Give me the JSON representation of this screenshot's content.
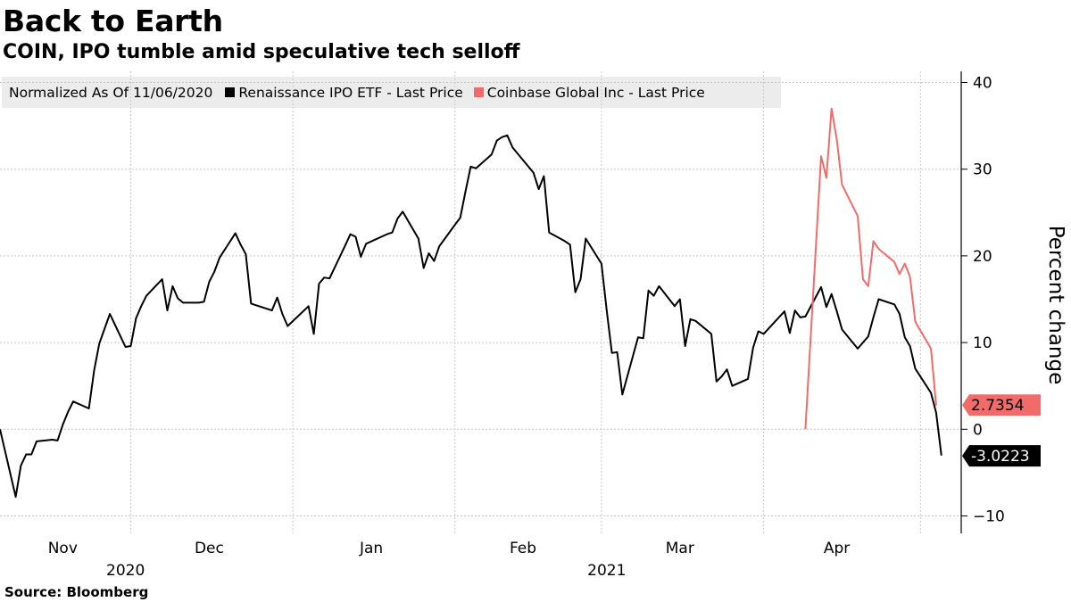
{
  "title": "Back to Earth",
  "subtitle": "COIN, IPO tumble amid speculative tech selloff",
  "legend": {
    "note": "Normalized As Of 11/06/2020",
    "items": [
      {
        "label": "Renaissance IPO ETF - Last Price",
        "color": "#000000"
      },
      {
        "label": "Coinbase Global Inc - Last Price",
        "color": "#f26b6b"
      }
    ]
  },
  "source": "Source:  Bloomberg",
  "chart_data": {
    "type": "line",
    "ylabel": "Percent change",
    "ylim": [
      -12,
      41
    ],
    "yticks": [
      40,
      30,
      20,
      10,
      0,
      -10
    ],
    "grid": true,
    "x_months": [
      "Nov",
      "Dec",
      "Jan",
      "Feb",
      "Mar",
      "Apr"
    ],
    "x_years": [
      "2020",
      "2021"
    ],
    "series": [
      {
        "name": "Renaissance IPO ETF - Last Price",
        "color": "#000000",
        "last_value_label": "-3.0223",
        "points": [
          [
            "2020-11-06",
            0.0
          ],
          [
            "2020-11-09",
            -7.8
          ],
          [
            "2020-11-10",
            -4.2
          ],
          [
            "2020-11-11",
            -2.9
          ],
          [
            "2020-11-12",
            -2.9
          ],
          [
            "2020-11-13",
            -1.4
          ],
          [
            "2020-11-16",
            -1.2
          ],
          [
            "2020-11-17",
            -1.3
          ],
          [
            "2020-11-18",
            0.5
          ],
          [
            "2020-11-19",
            2.0
          ],
          [
            "2020-11-20",
            3.2
          ],
          [
            "2020-11-23",
            2.4
          ],
          [
            "2020-11-24",
            6.8
          ],
          [
            "2020-11-25",
            9.9
          ],
          [
            "2020-11-27",
            13.3
          ],
          [
            "2020-11-30",
            9.5
          ],
          [
            "2020-12-01",
            9.6
          ],
          [
            "2020-12-02",
            12.8
          ],
          [
            "2020-12-03",
            14.2
          ],
          [
            "2020-12-04",
            15.4
          ],
          [
            "2020-12-07",
            17.3
          ],
          [
            "2020-12-08",
            13.7
          ],
          [
            "2020-12-09",
            16.5
          ],
          [
            "2020-12-10",
            15.1
          ],
          [
            "2020-12-11",
            14.6
          ],
          [
            "2020-12-14",
            14.6
          ],
          [
            "2020-12-15",
            14.7
          ],
          [
            "2020-12-16",
            17.0
          ],
          [
            "2020-12-17",
            18.2
          ],
          [
            "2020-12-18",
            19.8
          ],
          [
            "2020-12-21",
            22.6
          ],
          [
            "2020-12-22",
            21.3
          ],
          [
            "2020-12-23",
            20.2
          ],
          [
            "2020-12-24",
            14.5
          ],
          [
            "2020-12-28",
            13.7
          ],
          [
            "2020-12-29",
            15.2
          ],
          [
            "2020-12-30",
            13.3
          ],
          [
            "2020-12-31",
            11.9
          ],
          [
            "2021-01-04",
            14.2
          ],
          [
            "2021-01-05",
            11.0
          ],
          [
            "2021-01-06",
            16.8
          ],
          [
            "2021-01-07",
            17.5
          ],
          [
            "2021-01-08",
            17.4
          ],
          [
            "2021-01-11",
            21.2
          ],
          [
            "2021-01-12",
            22.5
          ],
          [
            "2021-01-13",
            22.2
          ],
          [
            "2021-01-14",
            19.9
          ],
          [
            "2021-01-15",
            21.4
          ],
          [
            "2021-01-19",
            22.5
          ],
          [
            "2021-01-20",
            22.7
          ],
          [
            "2021-01-21",
            24.3
          ],
          [
            "2021-01-22",
            25.1
          ],
          [
            "2021-01-25",
            22.0
          ],
          [
            "2021-01-26",
            18.6
          ],
          [
            "2021-01-27",
            20.3
          ],
          [
            "2021-01-28",
            19.4
          ],
          [
            "2021-01-29",
            21.1
          ],
          [
            "2021-02-01",
            23.6
          ],
          [
            "2021-02-02",
            24.4
          ],
          [
            "2021-02-03",
            27.4
          ],
          [
            "2021-02-04",
            30.3
          ],
          [
            "2021-02-05",
            30.1
          ],
          [
            "2021-02-08",
            31.7
          ],
          [
            "2021-02-09",
            33.3
          ],
          [
            "2021-02-10",
            33.7
          ],
          [
            "2021-02-11",
            33.9
          ],
          [
            "2021-02-12",
            32.5
          ],
          [
            "2021-02-16",
            29.6
          ],
          [
            "2021-02-17",
            27.7
          ],
          [
            "2021-02-18",
            29.2
          ],
          [
            "2021-02-19",
            22.7
          ],
          [
            "2021-02-22",
            21.7
          ],
          [
            "2021-02-23",
            21.3
          ],
          [
            "2021-02-24",
            15.8
          ],
          [
            "2021-02-25",
            17.3
          ],
          [
            "2021-02-26",
            22.0
          ],
          [
            "2021-03-01",
            19.1
          ],
          [
            "2021-03-02",
            13.7
          ],
          [
            "2021-03-03",
            8.8
          ],
          [
            "2021-03-04",
            8.9
          ],
          [
            "2021-03-05",
            4.0
          ],
          [
            "2021-03-08",
            10.6
          ],
          [
            "2021-03-09",
            10.5
          ],
          [
            "2021-03-10",
            16.0
          ],
          [
            "2021-03-11",
            15.4
          ],
          [
            "2021-03-12",
            16.5
          ],
          [
            "2021-03-15",
            14.2
          ],
          [
            "2021-03-16",
            15.0
          ],
          [
            "2021-03-17",
            9.6
          ],
          [
            "2021-03-18",
            12.7
          ],
          [
            "2021-03-19",
            12.5
          ],
          [
            "2021-03-22",
            11.0
          ],
          [
            "2021-03-23",
            5.5
          ],
          [
            "2021-03-24",
            6.1
          ],
          [
            "2021-03-25",
            6.9
          ],
          [
            "2021-03-26",
            5.0
          ],
          [
            "2021-03-29",
            5.8
          ],
          [
            "2021-03-30",
            9.4
          ],
          [
            "2021-03-31",
            11.3
          ],
          [
            "2021-04-01",
            11.0
          ],
          [
            "2021-04-05",
            13.6
          ],
          [
            "2021-04-06",
            11.1
          ],
          [
            "2021-04-07",
            13.7
          ],
          [
            "2021-04-08",
            12.9
          ],
          [
            "2021-04-09",
            13.0
          ],
          [
            "2021-04-12",
            16.4
          ],
          [
            "2021-04-13",
            14.1
          ],
          [
            "2021-04-14",
            15.6
          ],
          [
            "2021-04-15",
            13.6
          ],
          [
            "2021-04-16",
            11.5
          ],
          [
            "2021-04-19",
            9.3
          ],
          [
            "2021-04-20",
            10.0
          ],
          [
            "2021-04-21",
            10.7
          ],
          [
            "2021-04-22",
            12.9
          ],
          [
            "2021-04-23",
            15.0
          ],
          [
            "2021-04-26",
            14.4
          ],
          [
            "2021-04-27",
            13.3
          ],
          [
            "2021-04-28",
            10.6
          ],
          [
            "2021-04-29",
            9.6
          ],
          [
            "2021-04-30",
            7.0
          ],
          [
            "2021-05-03",
            4.2
          ],
          [
            "2021-05-04",
            1.9
          ],
          [
            "2021-05-05",
            -3.0223
          ]
        ]
      },
      {
        "name": "Coinbase Global Inc - Last Price",
        "color": "#f26b6b",
        "last_value_label": "2.7354",
        "points": [
          [
            "2021-04-09",
            0.0
          ],
          [
            "2021-04-12",
            31.5
          ],
          [
            "2021-04-13",
            29.0
          ],
          [
            "2021-04-14",
            37.0
          ],
          [
            "2021-04-15",
            33.4
          ],
          [
            "2021-04-16",
            28.2
          ],
          [
            "2021-04-19",
            24.6
          ],
          [
            "2021-04-20",
            17.3
          ],
          [
            "2021-04-21",
            16.5
          ],
          [
            "2021-04-22",
            21.7
          ],
          [
            "2021-04-23",
            20.8
          ],
          [
            "2021-04-26",
            19.3
          ],
          [
            "2021-04-27",
            17.9
          ],
          [
            "2021-04-28",
            19.1
          ],
          [
            "2021-04-29",
            17.6
          ],
          [
            "2021-04-30",
            12.4
          ],
          [
            "2021-05-03",
            9.3
          ],
          [
            "2021-05-04",
            2.7354
          ]
        ]
      }
    ]
  }
}
